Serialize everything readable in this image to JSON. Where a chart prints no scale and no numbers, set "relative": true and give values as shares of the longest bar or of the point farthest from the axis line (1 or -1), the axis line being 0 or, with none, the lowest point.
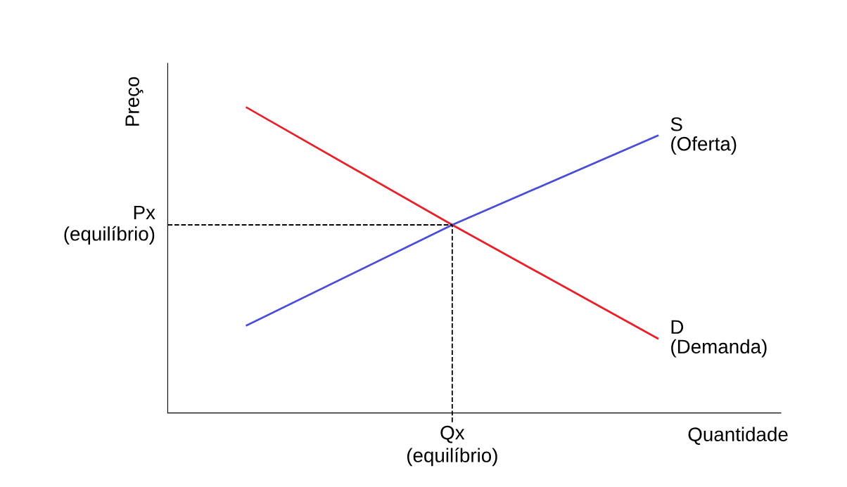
{
  "chart_data": {
    "type": "line",
    "relative": true,
    "xlabel": "Quantidade",
    "ylabel": "Preço",
    "categories": [
      null,
      null,
      null
    ],
    "series": [
      {
        "name": "D\n(Demanda)",
        "color": "#e8202a",
        "values": [
          1,
          0.616,
          0.244
        ]
      },
      {
        "name": "S\n(Oferta)",
        "color": "#4a4ed6",
        "values": [
          0.287,
          0.616,
          0.908
        ]
      }
    ],
    "ref_lines": [
      {
        "axis": "y",
        "value": 0.616,
        "label": "Px\n(equilíbrio)",
        "line_style": "dashed",
        "color": "#000000"
      }
    ],
    "annotations": [
      "Qx\n(equilíbrio)"
    ],
    "marker": "none",
    "line_style": "solid"
  }
}
